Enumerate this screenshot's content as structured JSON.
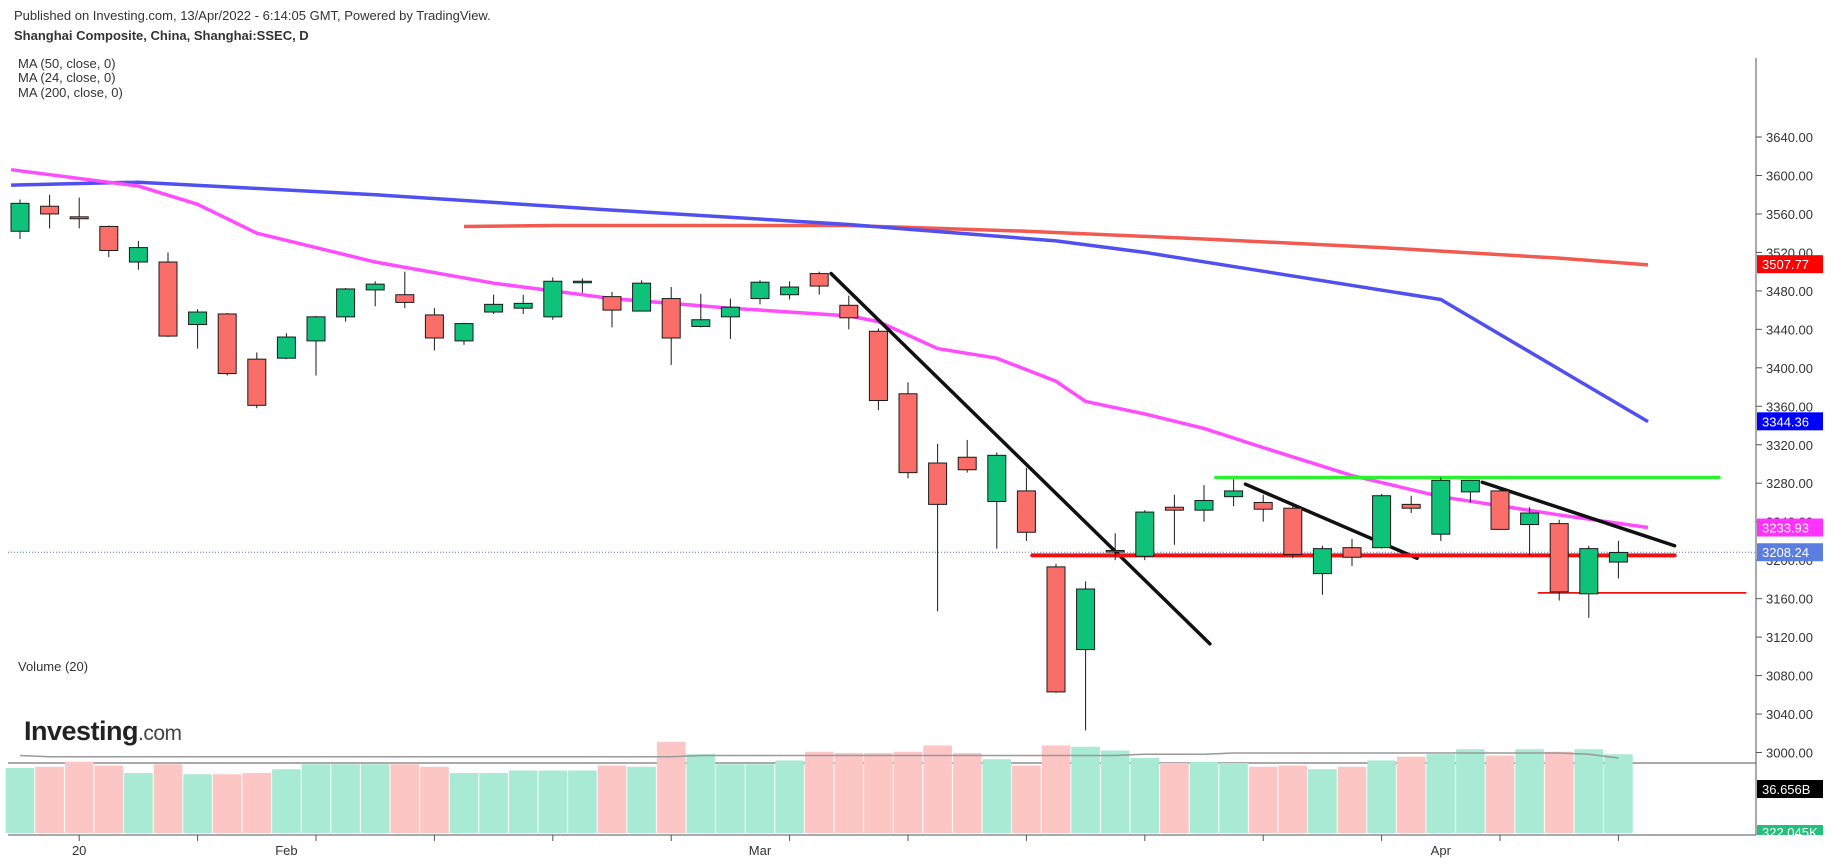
{
  "header": {
    "published": "Published on Investing.com, 13/Apr/2022 - 6:14:05 GMT, Powered by TradingView.",
    "symbol": "Shanghai Composite, China, Shanghai:SSEC, D"
  },
  "indicators": [
    "MA (50, close, 0)",
    "MA (24, close, 0)",
    "MA (200, close, 0)"
  ],
  "volume_label": "Volume (20)",
  "logo": {
    "main": "Investing",
    "suffix": ".com"
  },
  "colors": {
    "up": "#0ec27a",
    "down": "#fa6e6a",
    "ma50": "#5050f0",
    "ma24": "#ff4cff",
    "ma200": "#f25a50",
    "support": "#f01010",
    "resistance": "#2ff02f",
    "trendline": "#111111",
    "last_price": "#5a7de0",
    "vol_up": "#a8ead3",
    "vol_down": "#fcc6c4"
  },
  "chart_data": {
    "type": "candlestick",
    "y_axis": {
      "min": 3000,
      "max": 3640,
      "ticks": [
        "3000.00",
        "3040.00",
        "3080.00",
        "3120.00",
        "3160.00",
        "3200.00",
        "3240.00",
        "3280.00",
        "3320.00",
        "3360.00",
        "3400.00",
        "3440.00",
        "3480.00",
        "3520.00",
        "3560.00",
        "3600.00",
        "3640.00"
      ]
    },
    "x_axis": {
      "labels": [
        "20",
        "Feb",
        "Mar",
        "Apr"
      ],
      "label_indices": [
        2,
        9,
        25,
        48
      ]
    },
    "candles": [
      {
        "o": 3542,
        "h": 3575,
        "l": 3534,
        "c": 3571
      },
      {
        "o": 3568,
        "h": 3580,
        "l": 3545,
        "c": 3560
      },
      {
        "o": 3557,
        "h": 3577,
        "l": 3545,
        "c": 3555
      },
      {
        "o": 3547,
        "h": 3548,
        "l": 3515,
        "c": 3522
      },
      {
        "o": 3510,
        "h": 3532,
        "l": 3502,
        "c": 3525
      },
      {
        "o": 3510,
        "h": 3520,
        "l": 3432,
        "c": 3433
      },
      {
        "o": 3445,
        "h": 3461,
        "l": 3420,
        "c": 3458
      },
      {
        "o": 3456,
        "h": 3457,
        "l": 3392,
        "c": 3394
      },
      {
        "o": 3409,
        "h": 3416,
        "l": 3358,
        "c": 3361
      },
      {
        "o": 3410,
        "h": 3436,
        "l": 3409,
        "c": 3432
      },
      {
        "o": 3428,
        "h": 3454,
        "l": 3392,
        "c": 3453
      },
      {
        "o": 3453,
        "h": 3483,
        "l": 3448,
        "c": 3482
      },
      {
        "o": 3481,
        "h": 3490,
        "l": 3464,
        "c": 3487
      },
      {
        "o": 3476,
        "h": 3500,
        "l": 3462,
        "c": 3468
      },
      {
        "o": 3455,
        "h": 3462,
        "l": 3418,
        "c": 3431
      },
      {
        "o": 3428,
        "h": 3447,
        "l": 3424,
        "c": 3446
      },
      {
        "o": 3458,
        "h": 3476,
        "l": 3456,
        "c": 3466
      },
      {
        "o": 3462,
        "h": 3476,
        "l": 3456,
        "c": 3467
      },
      {
        "o": 3453,
        "h": 3494,
        "l": 3450,
        "c": 3490
      },
      {
        "o": 3489,
        "h": 3493,
        "l": 3478,
        "c": 3490
      },
      {
        "o": 3474,
        "h": 3479,
        "l": 3442,
        "c": 3460
      },
      {
        "o": 3459,
        "h": 3491,
        "l": 3459,
        "c": 3488
      },
      {
        "o": 3472,
        "h": 3484,
        "l": 3403,
        "c": 3431
      },
      {
        "o": 3443,
        "h": 3477,
        "l": 3442,
        "c": 3450
      },
      {
        "o": 3453,
        "h": 3472,
        "l": 3430,
        "c": 3463
      },
      {
        "o": 3472,
        "h": 3491,
        "l": 3466,
        "c": 3489
      },
      {
        "o": 3476,
        "h": 3490,
        "l": 3471,
        "c": 3484
      },
      {
        "o": 3498,
        "h": 3500,
        "l": 3476,
        "c": 3485
      },
      {
        "o": 3465,
        "h": 3475,
        "l": 3440,
        "c": 3452
      },
      {
        "o": 3438,
        "h": 3441,
        "l": 3356,
        "c": 3366
      },
      {
        "o": 3373,
        "h": 3385,
        "l": 3285,
        "c": 3291
      },
      {
        "o": 3301,
        "h": 3321,
        "l": 3147,
        "c": 3258
      },
      {
        "o": 3307,
        "h": 3325,
        "l": 3291,
        "c": 3294
      },
      {
        "o": 3261,
        "h": 3312,
        "l": 3212,
        "c": 3309
      },
      {
        "o": 3272,
        "h": 3296,
        "l": 3220,
        "c": 3229
      },
      {
        "o": 3193,
        "h": 3196,
        "l": 3062,
        "c": 3063
      },
      {
        "o": 3107,
        "h": 3178,
        "l": 3023,
        "c": 3170
      },
      {
        "o": 3209,
        "h": 3228,
        "l": 3200,
        "c": 3210
      },
      {
        "o": 3204,
        "h": 3252,
        "l": 3200,
        "c": 3250
      },
      {
        "o": 3255,
        "h": 3268,
        "l": 3216,
        "c": 3252
      },
      {
        "o": 3252,
        "h": 3278,
        "l": 3240,
        "c": 3262
      },
      {
        "o": 3266,
        "h": 3284,
        "l": 3256,
        "c": 3272
      },
      {
        "o": 3260,
        "h": 3268,
        "l": 3240,
        "c": 3253
      },
      {
        "o": 3254,
        "h": 3260,
        "l": 3202,
        "c": 3206
      },
      {
        "o": 3186,
        "h": 3215,
        "l": 3164,
        "c": 3212
      },
      {
        "o": 3213,
        "h": 3222,
        "l": 3194,
        "c": 3203
      },
      {
        "o": 3213,
        "h": 3269,
        "l": 3212,
        "c": 3267
      },
      {
        "o": 3258,
        "h": 3267,
        "l": 3249,
        "c": 3254
      },
      {
        "o": 3227,
        "h": 3286,
        "l": 3220,
        "c": 3283
      },
      {
        "o": 3271,
        "h": 3283,
        "l": 3260,
        "c": 3283
      },
      {
        "o": 3272,
        "h": 3276,
        "l": 3234,
        "c": 3232
      },
      {
        "o": 3237,
        "h": 3255,
        "l": 3205,
        "c": 3249
      },
      {
        "o": 3238,
        "h": 3242,
        "l": 3158,
        "c": 3167
      },
      {
        "o": 3165,
        "h": 3215,
        "l": 3140,
        "c": 3212
      },
      {
        "o": 3198,
        "h": 3220,
        "l": 3181,
        "c": 3208
      }
    ],
    "volume": [
      52,
      53,
      57,
      54,
      48,
      55,
      47,
      47,
      48,
      51,
      55,
      55,
      55,
      55,
      53,
      48,
      48,
      50,
      50,
      50,
      54,
      53,
      73,
      63,
      55,
      55,
      58,
      65,
      64,
      64,
      65,
      70,
      64,
      59,
      54,
      70,
      69,
      66,
      60,
      56,
      57,
      56,
      53,
      54,
      51,
      53,
      58,
      61,
      63,
      67,
      62,
      67,
      65,
      67,
      63
    ],
    "volume_ma": [
      62,
      61,
      61,
      61,
      61,
      61,
      61,
      61,
      61,
      61,
      61,
      61,
      61,
      61,
      61,
      61,
      61,
      61,
      61,
      61,
      61,
      61,
      61,
      62,
      62,
      62,
      62,
      62,
      62,
      62,
      62,
      62,
      62,
      62,
      62,
      62,
      62,
      62,
      63,
      63,
      63,
      64,
      64,
      64,
      64,
      64,
      64,
      64,
      64,
      64,
      64,
      64,
      64,
      63,
      60
    ],
    "ma50": [
      [
        -0.3,
        3590
      ],
      [
        4,
        3593
      ],
      [
        12,
        3580
      ],
      [
        20,
        3564
      ],
      [
        28,
        3549
      ],
      [
        35,
        3532
      ],
      [
        38,
        3520
      ],
      [
        48,
        3471
      ],
      [
        55,
        3344
      ]
    ],
    "ma24": [
      [
        -0.3,
        3606
      ],
      [
        4,
        3589
      ],
      [
        6,
        3570
      ],
      [
        8,
        3540
      ],
      [
        12,
        3510
      ],
      [
        16,
        3488
      ],
      [
        20,
        3472
      ],
      [
        24,
        3462
      ],
      [
        28,
        3454
      ],
      [
        29,
        3448
      ],
      [
        31,
        3420
      ],
      [
        33,
        3410
      ],
      [
        35,
        3386
      ],
      [
        36,
        3365
      ],
      [
        38,
        3352
      ],
      [
        40,
        3337
      ],
      [
        42,
        3317
      ],
      [
        45,
        3288
      ],
      [
        48,
        3266
      ],
      [
        52,
        3247
      ],
      [
        55,
        3234
      ]
    ],
    "ma200": [
      [
        15,
        3547
      ],
      [
        18,
        3548
      ],
      [
        28,
        3548
      ],
      [
        34,
        3542
      ],
      [
        40,
        3534
      ],
      [
        46,
        3525
      ],
      [
        52,
        3514
      ],
      [
        55,
        3507
      ]
    ],
    "price_labels": [
      {
        "value": 3507.77,
        "text": "3507.77",
        "color": "#ff0000"
      },
      {
        "value": 3344.36,
        "text": "3344.36",
        "color": "#0000ff"
      },
      {
        "value": 3233.93,
        "text": "3233.93",
        "color": "#ff33ff"
      },
      {
        "value": 3208.24,
        "text": "3208.24",
        "color": "#5a7de0"
      }
    ],
    "last_price": 3208.24,
    "volume_labels": [
      {
        "text": "36.656B",
        "color": "#000000"
      },
      {
        "text": "322.045K",
        "color": "#22c07a"
      }
    ],
    "annotations": [
      {
        "kind": "trendline",
        "from": [
          27.4,
          3498
        ],
        "to": [
          40.2,
          3113
        ]
      },
      {
        "kind": "trendline",
        "from": [
          41.4,
          3279
        ],
        "to": [
          47.2,
          3202
        ]
      },
      {
        "kind": "trendline",
        "from": [
          49.4,
          3281
        ],
        "to": [
          55.9,
          3215
        ]
      },
      {
        "kind": "support",
        "from": [
          34.2,
          3205
        ],
        "to": [
          55.9,
          3205
        ]
      },
      {
        "kind": "support",
        "from": [
          51.3,
          3166
        ],
        "to": [
          58.3,
          3166
        ]
      },
      {
        "kind": "resistance",
        "from": [
          40.4,
          3286
        ],
        "to": [
          57.4,
          3286
        ]
      }
    ]
  }
}
